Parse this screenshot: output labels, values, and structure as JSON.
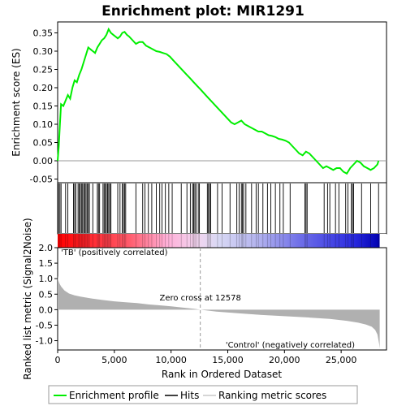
{
  "chart_data": {
    "type": "line",
    "title": "Enrichment plot: MIR1291",
    "colors": {
      "enrichment_line": "#00ee00",
      "hits": "#000000",
      "metric_fill": "#b0b0b0",
      "pos_band": "#ff0000",
      "neg_band": "#0000ff",
      "tb_label": "#cc0000",
      "control_label": "#2222cc",
      "zero_line": "#999999"
    },
    "panels": {
      "es": {
        "ylabel": "Enrichment score (ES)",
        "xlim": [
          0,
          29000
        ],
        "ylim": [
          -0.06,
          0.38
        ],
        "yticks": [
          {
            "value": -0.05,
            "label": "-0.05"
          },
          {
            "value": 0.0,
            "label": "0.00"
          },
          {
            "value": 0.05,
            "label": "0.05"
          },
          {
            "value": 0.1,
            "label": "0.10"
          },
          {
            "value": 0.15,
            "label": "0.15"
          },
          {
            "value": 0.2,
            "label": "0.20"
          },
          {
            "value": 0.25,
            "label": "0.25"
          },
          {
            "value": 0.3,
            "label": "0.30"
          },
          {
            "value": 0.35,
            "label": "0.35"
          }
        ],
        "series": [
          {
            "name": "Enrichment profile",
            "x": [
              0,
              100,
              200,
              300,
              500,
              700,
              900,
              1100,
              1300,
              1500,
              1700,
              1900,
              2100,
              2300,
              2500,
              2700,
              2900,
              3100,
              3300,
              3500,
              3700,
              3900,
              4100,
              4300,
              4500,
              4700,
              4900,
              5100,
              5300,
              5500,
              5700,
              5900,
              6100,
              6300,
              6600,
              6900,
              7200,
              7500,
              7800,
              8100,
              8400,
              8700,
              9000,
              9300,
              9600,
              9900,
              10200,
              10500,
              10800,
              11100,
              11400,
              11700,
              12000,
              12300,
              12600,
              12900,
              13200,
              13500,
              13800,
              14100,
              14400,
              14700,
              15000,
              15300,
              15600,
              15900,
              16200,
              16500,
              16800,
              17100,
              17400,
              17700,
              18000,
              18300,
              18600,
              18900,
              19200,
              19500,
              19800,
              20100,
              20400,
              20700,
              21000,
              21300,
              21600,
              21900,
              22200,
              22500,
              22800,
              23100,
              23400,
              23700,
              24000,
              24300,
              24600,
              24900,
              25200,
              25500,
              25800,
              26100,
              26400,
              26700,
              27000,
              27300,
              27600,
              27900,
              28200,
              28300
            ],
            "y": [
              0.0,
              0.04,
              0.1,
              0.155,
              0.15,
              0.165,
              0.18,
              0.17,
              0.2,
              0.22,
              0.215,
              0.235,
              0.25,
              0.27,
              0.29,
              0.31,
              0.305,
              0.3,
              0.295,
              0.31,
              0.32,
              0.33,
              0.335,
              0.345,
              0.36,
              0.35,
              0.345,
              0.34,
              0.335,
              0.34,
              0.35,
              0.353,
              0.345,
              0.34,
              0.33,
              0.32,
              0.325,
              0.325,
              0.315,
              0.31,
              0.305,
              0.3,
              0.298,
              0.295,
              0.292,
              0.285,
              0.275,
              0.265,
              0.255,
              0.245,
              0.235,
              0.225,
              0.215,
              0.205,
              0.195,
              0.185,
              0.175,
              0.165,
              0.155,
              0.145,
              0.135,
              0.125,
              0.115,
              0.105,
              0.1,
              0.105,
              0.11,
              0.1,
              0.095,
              0.09,
              0.085,
              0.08,
              0.08,
              0.075,
              0.07,
              0.068,
              0.065,
              0.06,
              0.058,
              0.055,
              0.05,
              0.04,
              0.03,
              0.02,
              0.015,
              0.025,
              0.02,
              0.01,
              0.0,
              -0.01,
              -0.02,
              -0.015,
              -0.02,
              -0.025,
              -0.02,
              -0.02,
              -0.03,
              -0.035,
              -0.02,
              -0.01,
              0.0,
              -0.005,
              -0.015,
              -0.02,
              -0.025,
              -0.02,
              -0.01,
              0.0
            ]
          }
        ]
      },
      "hits": {
        "name": "Hits",
        "positions": [
          80,
          200,
          300,
          700,
          900,
          1400,
          1500,
          1600,
          1800,
          1900,
          2000,
          2100,
          2200,
          2300,
          2400,
          2500,
          2600,
          2700,
          2800,
          3100,
          3500,
          3600,
          3700,
          4000,
          4100,
          4200,
          4300,
          4400,
          4500,
          4600,
          4700,
          5300,
          5500,
          5700,
          5800,
          5900,
          6000,
          6900,
          7500,
          7700,
          8000,
          8300,
          8700,
          9000,
          9200,
          9500,
          9800,
          10100,
          10900,
          11400,
          11700,
          11900,
          12000,
          12100,
          12200,
          12400,
          12500,
          13200,
          13300,
          13400,
          13500,
          14100,
          14500,
          15200,
          15800,
          16000,
          16200,
          16300,
          16400,
          16600,
          17100,
          17500,
          17700,
          18100,
          18500,
          18800,
          19200,
          19600,
          19900,
          20500,
          21800,
          21900,
          22000,
          23500,
          23800,
          24000,
          24500,
          24800,
          25400,
          25600,
          25900,
          26000,
          26100,
          26800,
          27600,
          28300
        ]
      },
      "metric": {
        "ylabel": "Ranked list metric (Signal2Noise)",
        "xlabel": "Rank in Ordered Dataset",
        "xlim": [
          0,
          29000
        ],
        "ylim": [
          -1.3,
          2.0
        ],
        "yticks": [
          {
            "value": -1.0,
            "label": "-1.0"
          },
          {
            "value": -0.5,
            "label": "-0.5"
          },
          {
            "value": 0.0,
            "label": "0.0"
          },
          {
            "value": 0.5,
            "label": "0.5"
          },
          {
            "value": 1.0,
            "label": "1.0"
          },
          {
            "value": 1.5,
            "label": "1.5"
          },
          {
            "value": 2.0,
            "label": "2.0"
          }
        ],
        "xticks": [
          {
            "value": 0,
            "label": "0"
          },
          {
            "value": 5000,
            "label": "5,000"
          },
          {
            "value": 10000,
            "label": "10,000"
          },
          {
            "value": 15000,
            "label": "15,000"
          },
          {
            "value": 20000,
            "label": "20,000"
          },
          {
            "value": 25000,
            "label": "25,000"
          }
        ],
        "total": 28400,
        "zero_cross": 12578,
        "zero_cross_label": "Zero cross at 12578",
        "pos_label": "'TB' (positively correlated)",
        "neg_label": "'Control' (negatively correlated)",
        "profile": {
          "rank": [
            0,
            50,
            150,
            300,
            600,
            1000,
            1500,
            2000,
            3000,
            4000,
            5000,
            6000,
            7000,
            8000,
            9000,
            10000,
            11000,
            12000,
            12578,
            14000,
            16000,
            18000,
            20000,
            22000,
            24000,
            25500,
            26500,
            27200,
            27700,
            28000,
            28200,
            28350,
            28400
          ],
          "value": [
            1.1,
            0.95,
            0.85,
            0.75,
            0.62,
            0.52,
            0.46,
            0.42,
            0.36,
            0.31,
            0.27,
            0.24,
            0.21,
            0.17,
            0.14,
            0.11,
            0.07,
            0.03,
            0.0,
            -0.06,
            -0.12,
            -0.17,
            -0.21,
            -0.25,
            -0.3,
            -0.36,
            -0.42,
            -0.48,
            -0.55,
            -0.65,
            -0.8,
            -1.1,
            -1.25
          ]
        }
      }
    },
    "legend": {
      "position": "bottom",
      "items": [
        {
          "label": "Enrichment profile",
          "kind": "line"
        },
        {
          "label": "Hits",
          "kind": "hit"
        },
        {
          "label": "Ranking metric scores",
          "kind": "metric"
        }
      ]
    }
  }
}
